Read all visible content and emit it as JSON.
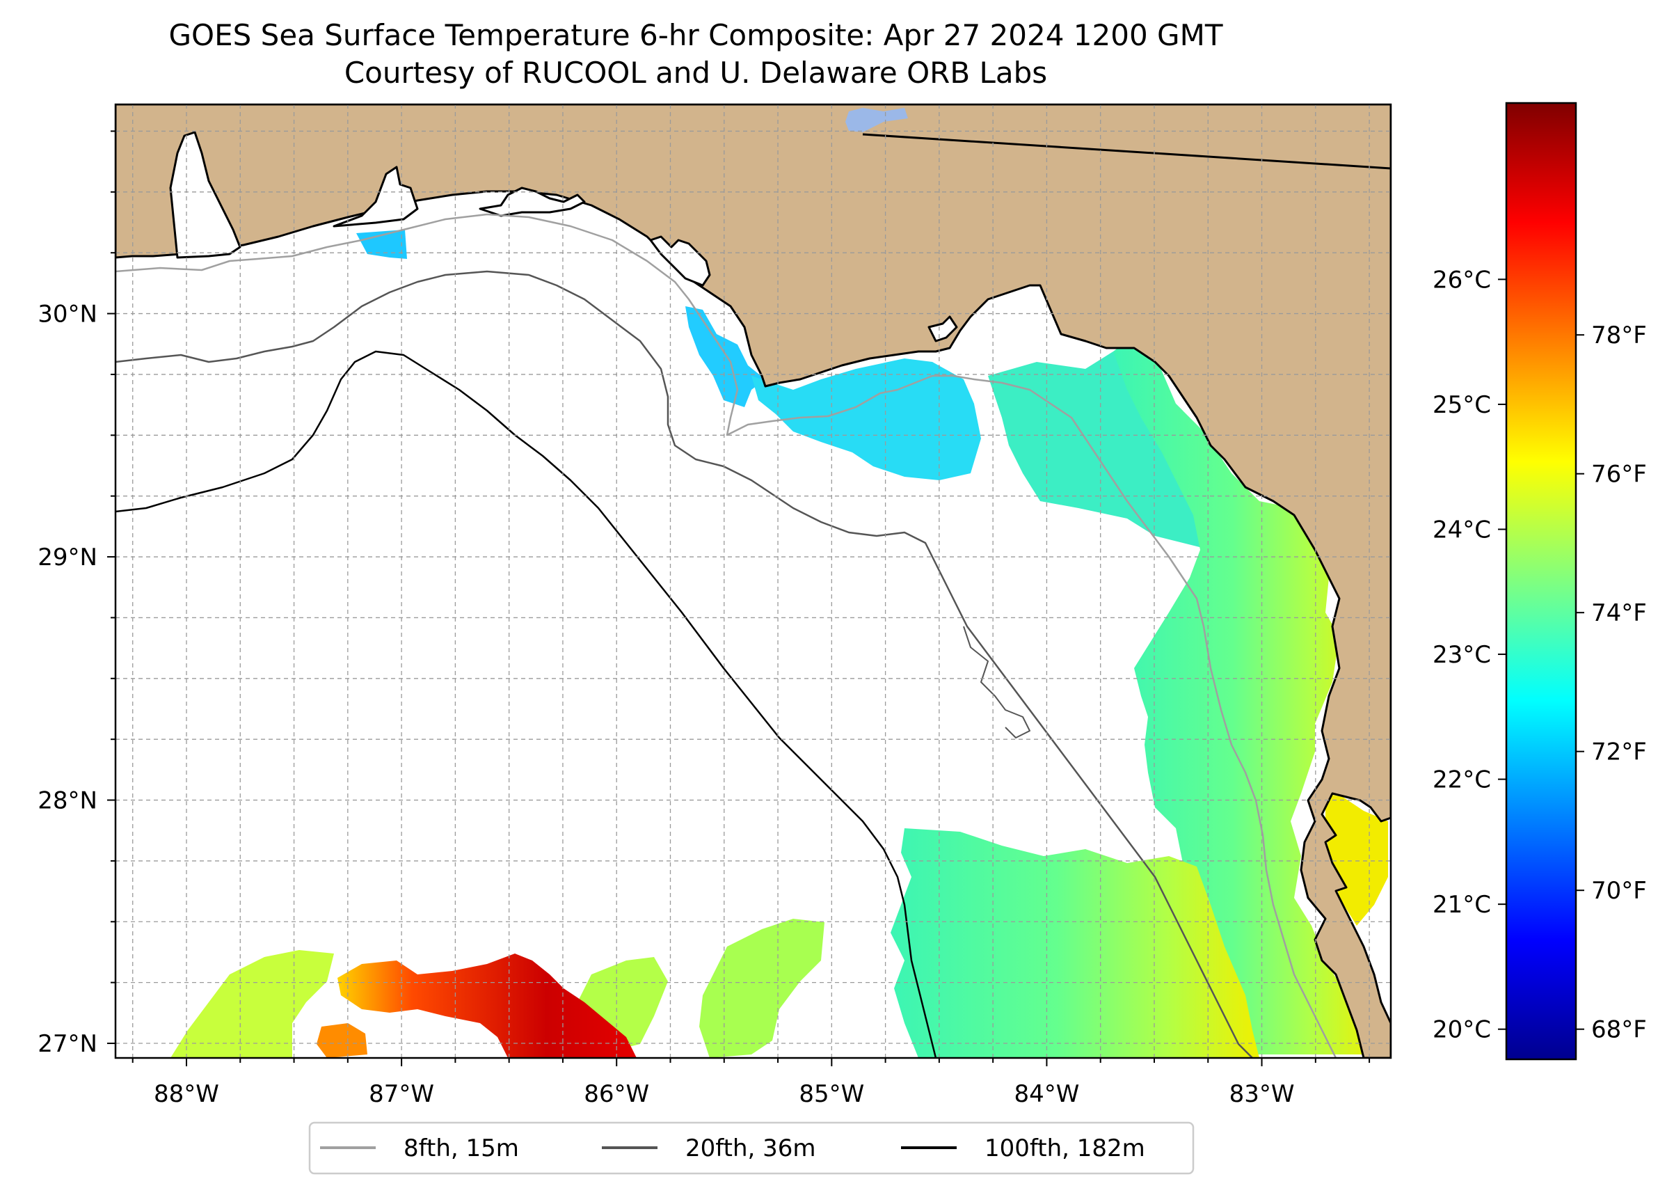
{
  "title": "GOES Sea Surface Temperature 6-hr Composite: Apr 27 2024 1200 GMT",
  "subtitle": "Courtesy of RUCOOL and U. Delaware ORB Labs",
  "map": {
    "lon_range": [
      -88.33,
      -82.4
    ],
    "lat_range": [
      26.94,
      30.86
    ],
    "gridlines": "dashed gray",
    "lon_ticks": [
      {
        "value": -88,
        "label": "88°W"
      },
      {
        "value": -87,
        "label": "87°W"
      },
      {
        "value": -86,
        "label": "86°W"
      },
      {
        "value": -85,
        "label": "85°W"
      },
      {
        "value": -84,
        "label": "84°W"
      },
      {
        "value": -83,
        "label": "83°W"
      }
    ],
    "lat_ticks": [
      {
        "value": 30,
        "label": "30°N"
      },
      {
        "value": 29,
        "label": "29°N"
      },
      {
        "value": 28,
        "label": "28°N"
      },
      {
        "value": 27,
        "label": "27°N"
      }
    ],
    "colors": {
      "land": "#d2b48c",
      "coast": "#000000"
    }
  },
  "colorbar": {
    "colormap": "jet",
    "range_c": [
      19.77,
      27.4
    ],
    "celsius_ticks": [
      {
        "value": 20,
        "label": "20°C"
      },
      {
        "value": 21,
        "label": "21°C"
      },
      {
        "value": 22,
        "label": "22°C"
      },
      {
        "value": 23,
        "label": "23°C"
      },
      {
        "value": 24,
        "label": "24°C"
      },
      {
        "value": 25,
        "label": "25°C"
      },
      {
        "value": 26,
        "label": "26°C"
      }
    ],
    "fahrenheit_ticks": [
      {
        "value": 68,
        "label": "68°F"
      },
      {
        "value": 70,
        "label": "70°F"
      },
      {
        "value": 72,
        "label": "72°F"
      },
      {
        "value": 74,
        "label": "74°F"
      },
      {
        "value": 76,
        "label": "76°F"
      },
      {
        "value": 78,
        "label": "78°F"
      }
    ]
  },
  "legend": {
    "placement": "bottom-center",
    "entries": [
      {
        "label": "8fth, 15m",
        "color": "#a0a0a0"
      },
      {
        "label": "20fth, 36m",
        "color": "#555555"
      },
      {
        "label": "100fth, 182m",
        "color": "#000000"
      }
    ]
  }
}
